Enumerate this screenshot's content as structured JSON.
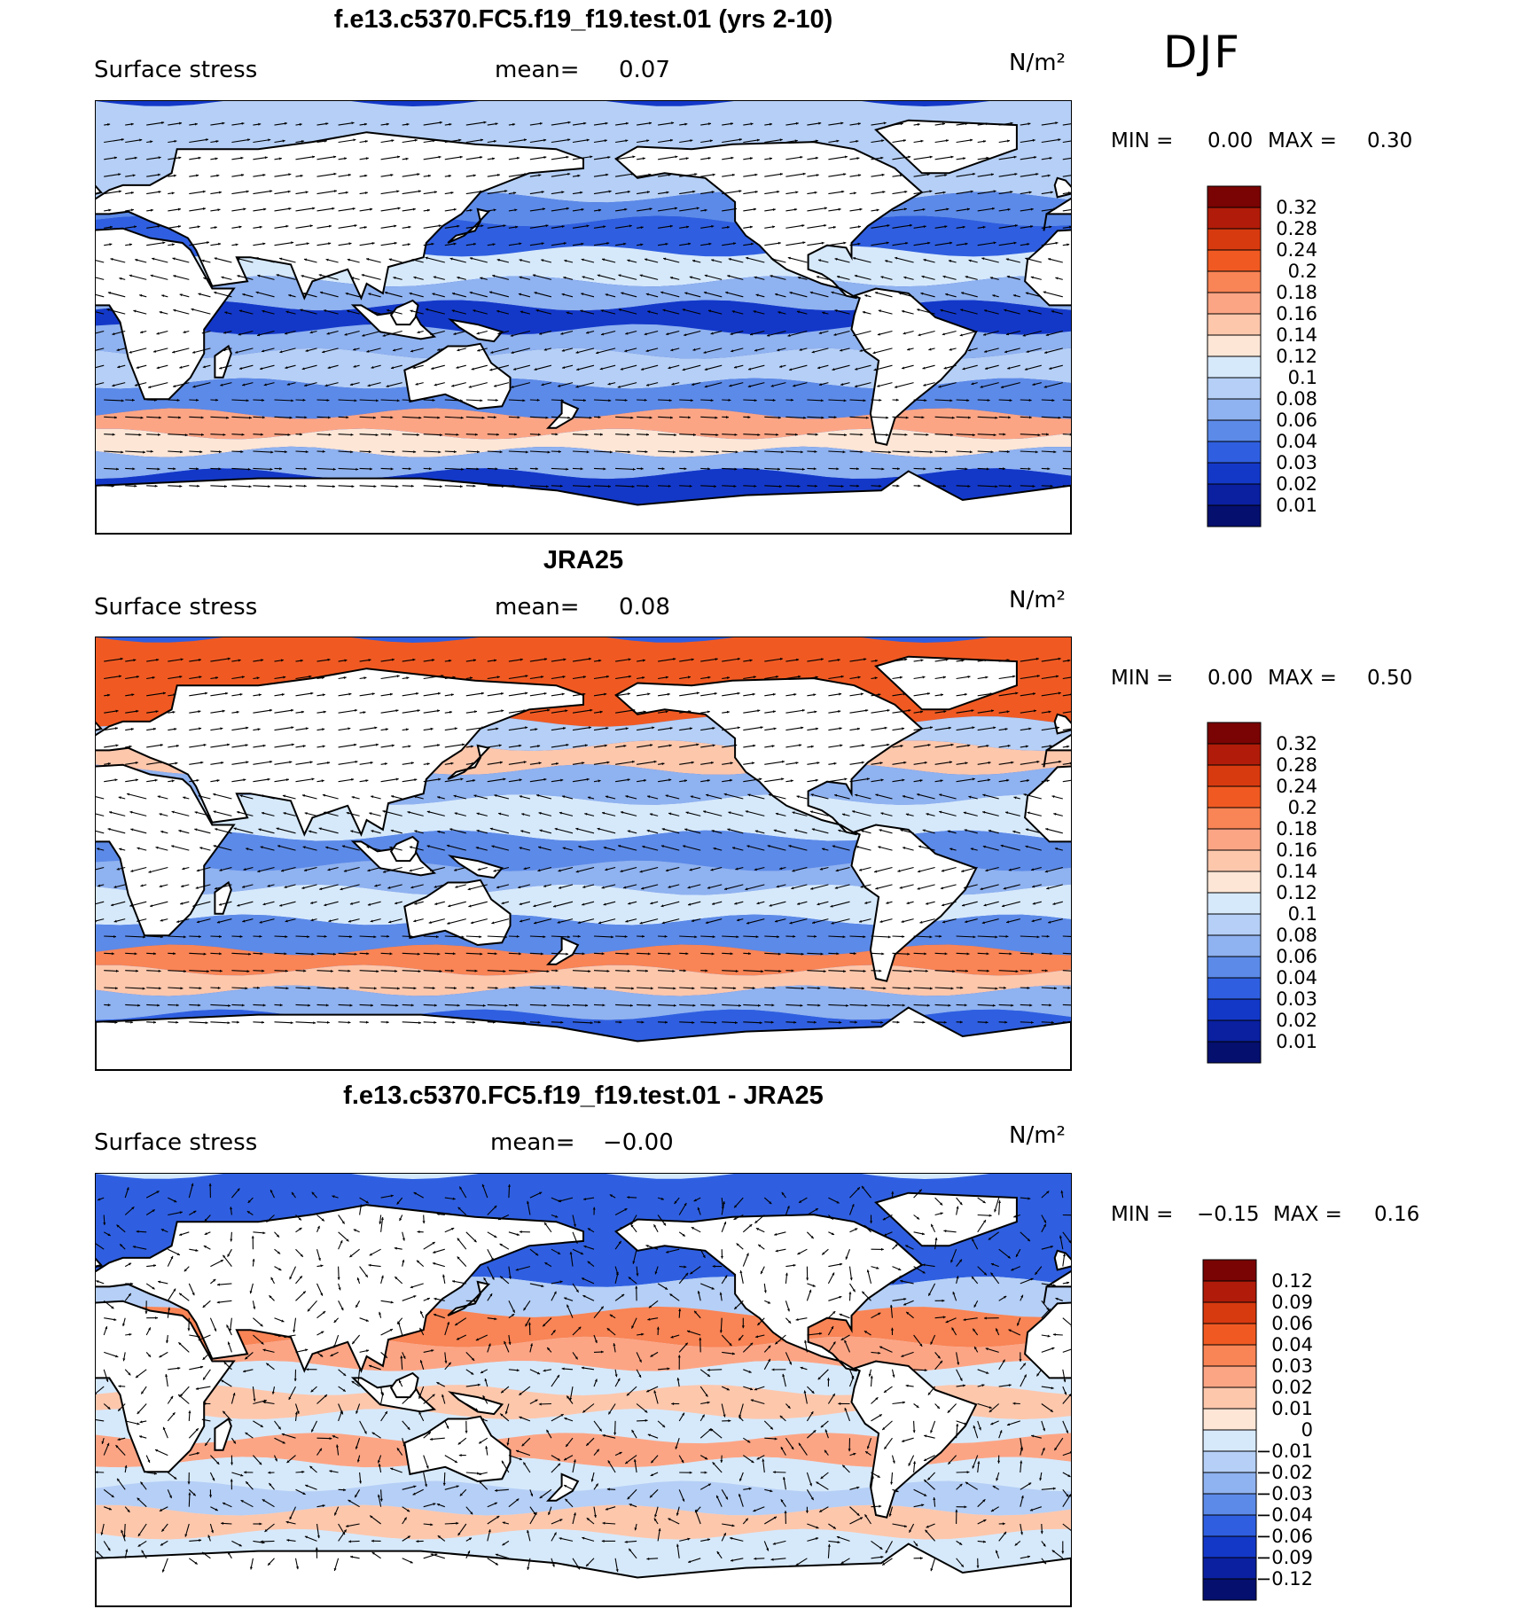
{
  "season": "DJF",
  "panels": [
    {
      "title": "f.e13.c5370.FC5.f19_f19.test.01 (yrs 2-10)",
      "variable": "Surface stress",
      "mean_label": "mean=",
      "mean_value": "0.07",
      "units": "N/m²",
      "min_label": "MIN =",
      "min_value": "0.00",
      "max_label": "MAX =",
      "max_value": "0.30",
      "colorbar": {
        "labels": [
          "0.32",
          "0.28",
          "0.24",
          "0.2",
          "0.18",
          "0.16",
          "0.14",
          "0.12",
          "0.1",
          "0.08",
          "0.06",
          "0.04",
          "0.03",
          "0.02",
          "0.01"
        ],
        "colors": [
          "#7a0303",
          "#b01c09",
          "#d83a0f",
          "#f05a22",
          "#f98455",
          "#fca585",
          "#fdc7ac",
          "#fde6d6",
          "#d6e9fb",
          "#b5cff6",
          "#8fb2f0",
          "#5c8ae8",
          "#2f5fe0",
          "#1338c8",
          "#0a20a0",
          "#050f6e"
        ]
      },
      "chart_data": {
        "type": "heatmap",
        "title": "f.e13.c5370.FC5.f19_f19.test.01 (yrs 2-10)",
        "field": "Surface stress",
        "units": "N/m²",
        "mean": 0.07,
        "min": 0.0,
        "max": 0.3,
        "overlay": "wind stress vectors",
        "zonal_bands": [
          {
            "lat": 55,
            "value": 0.08
          },
          {
            "lat": 45,
            "value": 0.05
          },
          {
            "lat": 35,
            "value": 0.03
          },
          {
            "lat": 20,
            "value": 0.1
          },
          {
            "lat": 10,
            "value": 0.06
          },
          {
            "lat": 0,
            "value": 0.02
          },
          {
            "lat": -10,
            "value": 0.06
          },
          {
            "lat": -20,
            "value": 0.08
          },
          {
            "lat": -35,
            "value": 0.04
          },
          {
            "lat": -45,
            "value": 0.16
          },
          {
            "lat": -52,
            "value": 0.12
          },
          {
            "lat": -60,
            "value": 0.06
          },
          {
            "lat": -70,
            "value": 0.02
          }
        ]
      }
    },
    {
      "title": "JRA25",
      "variable": "Surface stress",
      "mean_label": "mean=",
      "mean_value": "0.08",
      "units": "N/m²",
      "min_label": "MIN =",
      "min_value": "0.00",
      "max_label": "MAX =",
      "max_value": "0.50",
      "colorbar": {
        "labels": [
          "0.32",
          "0.28",
          "0.24",
          "0.2",
          "0.18",
          "0.16",
          "0.14",
          "0.12",
          "0.1",
          "0.08",
          "0.06",
          "0.04",
          "0.03",
          "0.02",
          "0.01"
        ],
        "colors": [
          "#7a0303",
          "#b01c09",
          "#d83a0f",
          "#f05a22",
          "#f98455",
          "#fca585",
          "#fdc7ac",
          "#fde6d6",
          "#d6e9fb",
          "#b5cff6",
          "#8fb2f0",
          "#5c8ae8",
          "#2f5fe0",
          "#1338c8",
          "#0a20a0",
          "#050f6e"
        ]
      },
      "chart_data": {
        "type": "heatmap",
        "title": "JRA25",
        "field": "Surface stress",
        "units": "N/m²",
        "mean": 0.08,
        "min": 0.0,
        "max": 0.5,
        "overlay": "wind stress vectors",
        "zonal_bands": [
          {
            "lat": 60,
            "value": 0.2
          },
          {
            "lat": 50,
            "value": 0.08
          },
          {
            "lat": 40,
            "value": 0.14
          },
          {
            "lat": 30,
            "value": 0.06
          },
          {
            "lat": 15,
            "value": 0.1
          },
          {
            "lat": 0,
            "value": 0.04
          },
          {
            "lat": -10,
            "value": 0.06
          },
          {
            "lat": -20,
            "value": 0.1
          },
          {
            "lat": -35,
            "value": 0.05
          },
          {
            "lat": -45,
            "value": 0.18
          },
          {
            "lat": -52,
            "value": 0.14
          },
          {
            "lat": -62,
            "value": 0.06
          },
          {
            "lat": -72,
            "value": 0.03
          }
        ]
      }
    },
    {
      "title": "f.e13.c5370.FC5.f19_f19.test.01 - JRA25",
      "variable": "Surface stress",
      "mean_label": "mean=",
      "mean_value": "−0.00",
      "units": "N/m²",
      "min_label": "MIN =",
      "min_value": "−0.15",
      "max_label": "MAX =",
      "max_value": "0.16",
      "colorbar": {
        "labels": [
          "0.12",
          "0.09",
          "0.06",
          "0.04",
          "0.03",
          "0.02",
          "0.01",
          "0",
          "−0.01",
          "−0.02",
          "−0.03",
          "−0.04",
          "−0.06",
          "−0.09",
          "−0.12"
        ],
        "colors": [
          "#7a0303",
          "#b01c09",
          "#d83a0f",
          "#f05a22",
          "#f98455",
          "#fca585",
          "#fdc7ac",
          "#fde6d6",
          "#d6e9fb",
          "#b5cff6",
          "#8fb2f0",
          "#5c8ae8",
          "#2f5fe0",
          "#1338c8",
          "#0a20a0",
          "#050f6e"
        ]
      },
      "chart_data": {
        "type": "heatmap",
        "title": "f.e13.c5370.FC5.f19_f19.test.01 - JRA25",
        "field": "Surface stress",
        "units": "N/m²",
        "mean": -0.0,
        "min": -0.15,
        "max": 0.16,
        "overlay": "wind stress difference vectors",
        "zonal_bands": [
          {
            "lat": 50,
            "value": -0.06
          },
          {
            "lat": 40,
            "value": -0.02
          },
          {
            "lat": 25,
            "value": 0.03
          },
          {
            "lat": 15,
            "value": 0.02
          },
          {
            "lat": 5,
            "value": -0.01
          },
          {
            "lat": -5,
            "value": 0.01
          },
          {
            "lat": -15,
            "value": -0.01
          },
          {
            "lat": -25,
            "value": 0.02
          },
          {
            "lat": -35,
            "value": -0.01
          },
          {
            "lat": -45,
            "value": -0.02
          },
          {
            "lat": -55,
            "value": 0.01
          },
          {
            "lat": -65,
            "value": -0.01
          }
        ]
      }
    }
  ]
}
